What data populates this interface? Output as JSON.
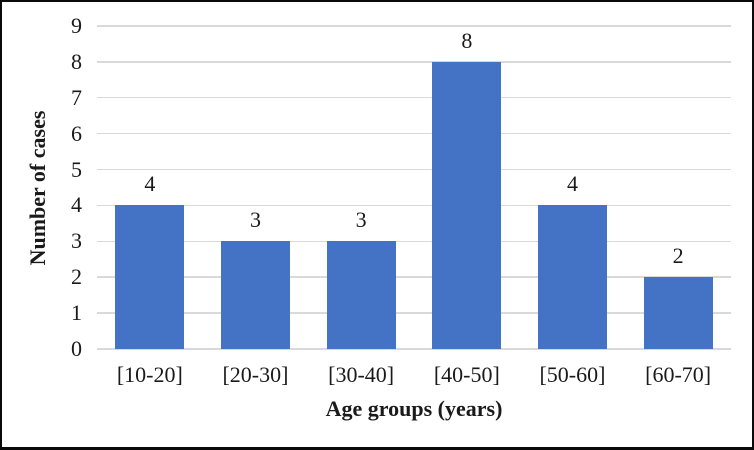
{
  "chart_data": {
    "type": "bar",
    "title": "",
    "categories": [
      "[10-20]",
      "[20-30]",
      "[30-40]",
      "[40-50]",
      "[50-60]",
      "[60-70]"
    ],
    "values": [
      4,
      3,
      3,
      8,
      4,
      2
    ],
    "data_labels": [
      4,
      3,
      3,
      8,
      4,
      2
    ],
    "xlabel": "Age groups (years)",
    "ylabel": "Number of cases",
    "ylim": [
      0,
      9
    ],
    "yticks": [
      0,
      1,
      2,
      3,
      4,
      5,
      6,
      7,
      8,
      9
    ],
    "grid": true,
    "legend": "none",
    "colors": {
      "bar": "#4472C4",
      "gridline": "#D9D9D9",
      "text": "#1a1a1a",
      "frame_border": "#0A0A0A",
      "background": "#FFFFFF"
    }
  }
}
